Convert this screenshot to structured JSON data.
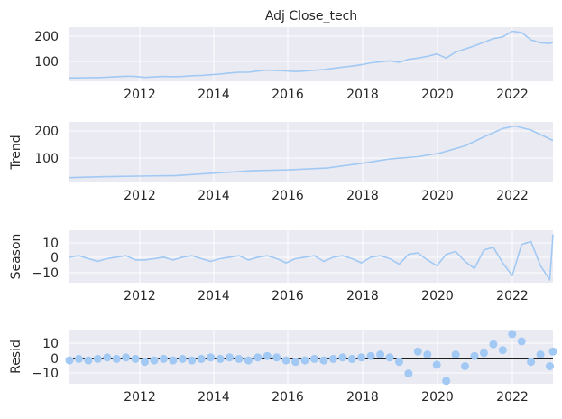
{
  "title": "Adj Close_tech",
  "colors": {
    "axes_bg": "#EAEAF2",
    "grid": "#FFFFFF",
    "line": "#A1C9F4",
    "marker": "#A1C9F4",
    "zero_line": "#000000",
    "text": "#262626"
  },
  "x_tick_labels": [
    "2012",
    "2014",
    "2016",
    "2018",
    "2020",
    "2022"
  ],
  "chart_data": [
    {
      "type": "line",
      "name": "observed",
      "title": "Adj Close_tech",
      "ylabel": "",
      "xlim": [
        "2010-03",
        "2023-01"
      ],
      "ylim": [
        10,
        232
      ],
      "yticks": [
        "100",
        "200"
      ],
      "grid": true,
      "series": [
        {
          "points": [
            [
              "2010-03",
              24
            ],
            [
              "2010-06",
              24
            ],
            [
              "2010-09",
              25
            ],
            [
              "2010-12",
              25
            ],
            [
              "2011-03",
              27
            ],
            [
              "2011-06",
              29
            ],
            [
              "2011-09",
              31
            ],
            [
              "2011-12",
              30
            ],
            [
              "2012-03",
              26
            ],
            [
              "2012-06",
              28
            ],
            [
              "2012-09",
              30
            ],
            [
              "2012-12",
              29
            ],
            [
              "2013-03",
              30
            ],
            [
              "2013-06",
              33
            ],
            [
              "2013-09",
              34
            ],
            [
              "2013-12",
              37
            ],
            [
              "2014-03",
              40
            ],
            [
              "2014-06",
              44
            ],
            [
              "2014-09",
              47
            ],
            [
              "2014-12",
              47
            ],
            [
              "2015-03",
              52
            ],
            [
              "2015-06",
              56
            ],
            [
              "2015-09",
              54
            ],
            [
              "2015-12",
              53
            ],
            [
              "2016-03",
              50
            ],
            [
              "2016-06",
              52
            ],
            [
              "2016-09",
              55
            ],
            [
              "2016-12",
              58
            ],
            [
              "2017-03",
              63
            ],
            [
              "2017-06",
              68
            ],
            [
              "2017-09",
              72
            ],
            [
              "2017-12",
              78
            ],
            [
              "2018-03",
              86
            ],
            [
              "2018-06",
              90
            ],
            [
              "2018-09",
              94
            ],
            [
              "2018-12",
              88
            ],
            [
              "2019-03",
              100
            ],
            [
              "2019-06",
              105
            ],
            [
              "2019-09",
              112
            ],
            [
              "2019-12",
              122
            ],
            [
              "2020-03",
              105
            ],
            [
              "2020-06",
              130
            ],
            [
              "2020-09",
              142
            ],
            [
              "2020-12",
              155
            ],
            [
              "2021-03",
              170
            ],
            [
              "2021-06",
              185
            ],
            [
              "2021-09",
              192
            ],
            [
              "2021-12",
              215
            ],
            [
              "2022-03",
              210
            ],
            [
              "2022-06",
              180
            ],
            [
              "2022-09",
              168
            ],
            [
              "2022-12",
              165
            ],
            [
              "2023-01",
              170
            ]
          ]
        }
      ]
    },
    {
      "type": "line",
      "name": "trend",
      "ylabel": "Trend",
      "xlim": [
        "2010-03",
        "2023-01"
      ],
      "ylim": [
        10,
        212
      ],
      "yticks": [
        "100",
        "200"
      ],
      "grid": true,
      "series": [
        {
          "points": [
            [
              "2010-03",
              26
            ],
            [
              "2011-01",
              29
            ],
            [
              "2012-01",
              31
            ],
            [
              "2013-01",
              33
            ],
            [
              "2014-01",
              41
            ],
            [
              "2015-01",
              49
            ],
            [
              "2016-01",
              52
            ],
            [
              "2017-01",
              58
            ],
            [
              "2018-01",
              75
            ],
            [
              "2018-09",
              88
            ],
            [
              "2019-06",
              96
            ],
            [
              "2020-01",
              108
            ],
            [
              "2020-09",
              132
            ],
            [
              "2021-03",
              162
            ],
            [
              "2021-09",
              190
            ],
            [
              "2022-01",
              198
            ],
            [
              "2022-06",
              185
            ],
            [
              "2023-01",
              150
            ]
          ]
        }
      ]
    },
    {
      "type": "line",
      "name": "seasonal",
      "ylabel": "Season",
      "xlim": [
        "2010-03",
        "2023-01"
      ],
      "ylim": [
        -17,
        20
      ],
      "yticks": [
        "10",
        "0",
        "−10"
      ],
      "grid": true,
      "series": [
        {
          "points": [
            [
              "2010-03",
              1
            ],
            [
              "2010-06",
              2
            ],
            [
              "2010-09",
              0
            ],
            [
              "2010-12",
              -2
            ],
            [
              "2011-03",
              0
            ],
            [
              "2011-06",
              1
            ],
            [
              "2011-09",
              2
            ],
            [
              "2011-12",
              -1
            ],
            [
              "2012-03",
              -1
            ],
            [
              "2012-06",
              0
            ],
            [
              "2012-09",
              1
            ],
            [
              "2012-12",
              -1
            ],
            [
              "2013-03",
              1
            ],
            [
              "2013-06",
              2
            ],
            [
              "2013-09",
              0
            ],
            [
              "2013-12",
              -2
            ],
            [
              "2014-03",
              0
            ],
            [
              "2014-06",
              1
            ],
            [
              "2014-09",
              2
            ],
            [
              "2014-12",
              -1
            ],
            [
              "2015-03",
              1
            ],
            [
              "2015-06",
              2
            ],
            [
              "2015-09",
              0
            ],
            [
              "2015-12",
              -3
            ],
            [
              "2016-03",
              0
            ],
            [
              "2016-06",
              1
            ],
            [
              "2016-09",
              2
            ],
            [
              "2016-12",
              -2
            ],
            [
              "2017-03",
              1
            ],
            [
              "2017-06",
              2
            ],
            [
              "2017-09",
              0
            ],
            [
              "2017-12",
              -3
            ],
            [
              "2018-03",
              1
            ],
            [
              "2018-06",
              2
            ],
            [
              "2018-09",
              0
            ],
            [
              "2018-12",
              -4
            ],
            [
              "2019-03",
              3
            ],
            [
              "2019-06",
              4
            ],
            [
              "2019-09",
              -1
            ],
            [
              "2019-12",
              -5
            ],
            [
              "2020-03",
              3
            ],
            [
              "2020-06",
              5
            ],
            [
              "2020-09",
              -2
            ],
            [
              "2020-12",
              -7
            ],
            [
              "2021-03",
              6
            ],
            [
              "2021-06",
              8
            ],
            [
              "2021-09",
              -3
            ],
            [
              "2021-12",
              -12
            ],
            [
              "2022-03",
              10
            ],
            [
              "2022-06",
              12
            ],
            [
              "2022-09",
              -5
            ],
            [
              "2022-12",
              -15
            ],
            [
              "2023-01",
              17
            ]
          ]
        }
      ]
    },
    {
      "type": "scatter",
      "name": "resid",
      "ylabel": "Resid",
      "xlim": [
        "2010-03",
        "2023-01"
      ],
      "ylim": [
        -17,
        20
      ],
      "yticks": [
        "10",
        "0",
        "−10"
      ],
      "grid": true,
      "baseline": 0,
      "series": [
        {
          "points": [
            [
              "2010-03",
              -1
            ],
            [
              "2010-06",
              0
            ],
            [
              "2010-09",
              -1
            ],
            [
              "2010-12",
              0
            ],
            [
              "2011-03",
              1
            ],
            [
              "2011-06",
              0
            ],
            [
              "2011-09",
              1
            ],
            [
              "2011-12",
              0
            ],
            [
              "2012-03",
              -2
            ],
            [
              "2012-06",
              -1
            ],
            [
              "2012-09",
              0
            ],
            [
              "2012-12",
              -1
            ],
            [
              "2013-03",
              0
            ],
            [
              "2013-06",
              -1
            ],
            [
              "2013-09",
              0
            ],
            [
              "2013-12",
              1
            ],
            [
              "2014-03",
              0
            ],
            [
              "2014-06",
              1
            ],
            [
              "2014-09",
              0
            ],
            [
              "2014-12",
              -1
            ],
            [
              "2015-03",
              1
            ],
            [
              "2015-06",
              2
            ],
            [
              "2015-09",
              1
            ],
            [
              "2015-12",
              -1
            ],
            [
              "2016-03",
              -2
            ],
            [
              "2016-06",
              -1
            ],
            [
              "2016-09",
              0
            ],
            [
              "2016-12",
              -1
            ],
            [
              "2017-03",
              0
            ],
            [
              "2017-06",
              1
            ],
            [
              "2017-09",
              0
            ],
            [
              "2017-12",
              1
            ],
            [
              "2018-03",
              2
            ],
            [
              "2018-06",
              3
            ],
            [
              "2018-09",
              1
            ],
            [
              "2018-12",
              -2
            ],
            [
              "2019-03",
              -10
            ],
            [
              "2019-06",
              5
            ],
            [
              "2019-09",
              3
            ],
            [
              "2019-12",
              -4
            ],
            [
              "2020-03",
              -15
            ],
            [
              "2020-06",
              3
            ],
            [
              "2020-09",
              -5
            ],
            [
              "2020-12",
              2
            ],
            [
              "2021-03",
              4
            ],
            [
              "2021-06",
              10
            ],
            [
              "2021-09",
              6
            ],
            [
              "2021-12",
              17
            ],
            [
              "2022-03",
              12
            ],
            [
              "2022-06",
              -2
            ],
            [
              "2022-09",
              3
            ],
            [
              "2022-12",
              -5
            ],
            [
              "2023-01",
              5
            ]
          ]
        }
      ]
    }
  ]
}
